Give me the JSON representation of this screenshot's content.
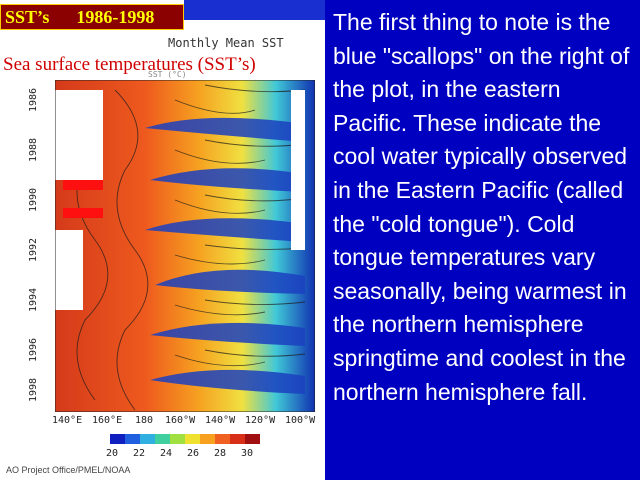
{
  "slide": {
    "title_box": "SST’s      1986-1998",
    "plot_title": "Monthly Mean SST",
    "subtitle": "Sea surface temperatures (SST’s)",
    "faint_label": "SST (°C)",
    "y_ticks": [
      "1986",
      "1988",
      "1990",
      "1992",
      "1994",
      "1996",
      "1998"
    ],
    "x_ticks": [
      "140°E",
      "160°E",
      "180",
      "160°W",
      "140°W",
      "120°W",
      "100°W"
    ],
    "colorbar_labels": [
      "20",
      "22",
      "24",
      "26",
      "28",
      "30"
    ],
    "credit": "AO Project Office/PMEL/NOAA",
    "body_text": "The first thing to note is the blue \"scallops\" on the right of  the plot, in the eastern Pacific. These indicate the cool water typically observed in the Eastern Pacific (called the \"cold tongue\"). Cold tongue temperatures vary seasonally, being warmest in the northern hemisphere springtime and coolest in  the northern hemisphere fall."
  },
  "colors": {
    "background": "#0000c0",
    "title_box_bg": "#8b0000",
    "title_box_text": "#ffff00",
    "subtitle": "#d00000",
    "body_text": "#ffffff"
  }
}
